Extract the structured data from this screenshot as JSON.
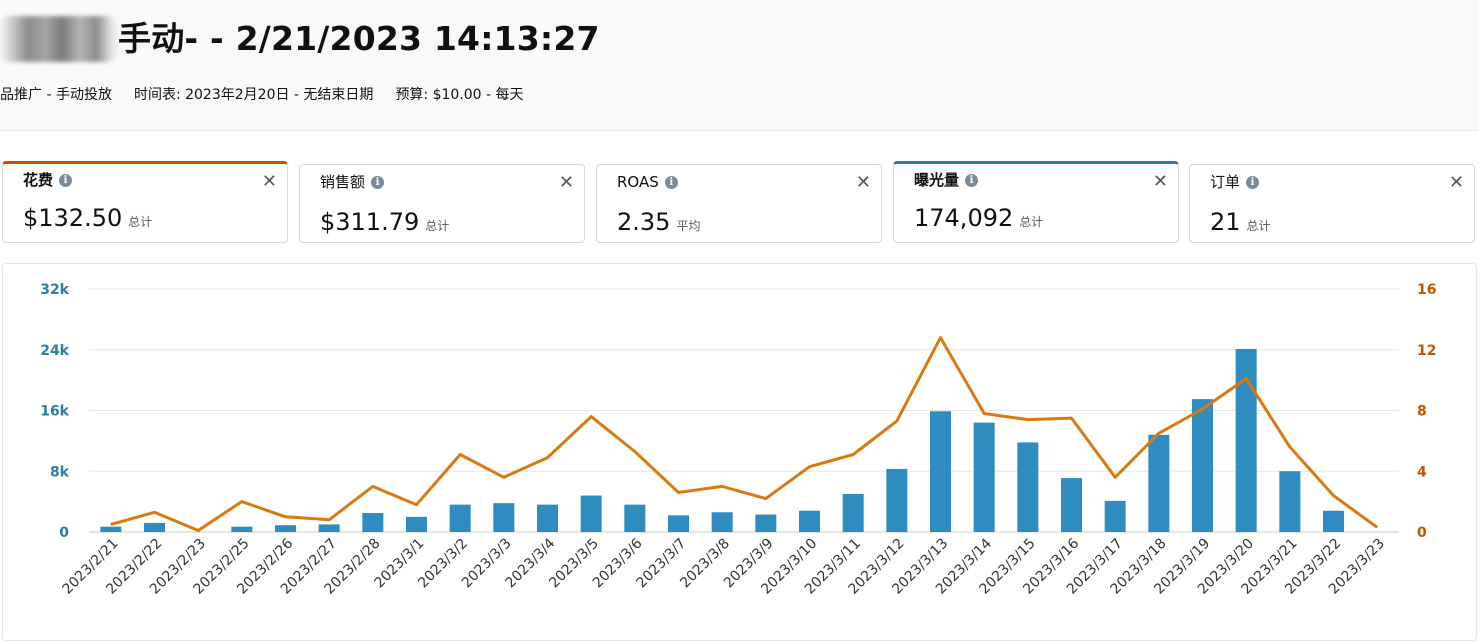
{
  "header": {
    "title": "手动- - 2/21/2023 14:13:27",
    "info": [
      "品推广 - 手动投放",
      "时间表: 2023年2月20日 - 无结束日期",
      "预算: $10.00 - 每天"
    ]
  },
  "metrics": [
    {
      "label": "花费",
      "value": "$132.50",
      "agg": "总计",
      "selected": "orange"
    },
    {
      "label": "销售额",
      "value": "$311.79",
      "agg": "总计",
      "selected": ""
    },
    {
      "label": "ROAS",
      "value": "2.35",
      "agg": "平均",
      "selected": ""
    },
    {
      "label": "曝光量",
      "value": "174,092",
      "agg": "总计",
      "selected": "blue"
    },
    {
      "label": "订单",
      "value": "21",
      "agg": "总计",
      "selected": ""
    }
  ],
  "icons": {
    "info": "info-icon",
    "close": "close-icon"
  },
  "colors": {
    "bar": "#2f8cbf",
    "line": "#d97a10",
    "left_axis": "#2b7ea1",
    "right_axis": "#c45500"
  },
  "chart_data": {
    "type": "bar",
    "categories": [
      "2023/2/21",
      "2023/2/22",
      "2023/2/23",
      "2023/2/25",
      "2023/2/26",
      "2023/2/27",
      "2023/2/28",
      "2023/3/1",
      "2023/3/2",
      "2023/3/3",
      "2023/3/4",
      "2023/3/5",
      "2023/3/6",
      "2023/3/7",
      "2023/3/8",
      "2023/3/9",
      "2023/3/10",
      "2023/3/11",
      "2023/3/12",
      "2023/3/13",
      "2023/3/14",
      "2023/3/15",
      "2023/3/16",
      "2023/3/17",
      "2023/3/18",
      "2023/3/19",
      "2023/3/20",
      "2023/3/21",
      "2023/3/22",
      "2023/3/23"
    ],
    "series": [
      {
        "type": "bar",
        "axis": "left",
        "values": [
          700,
          1200,
          0,
          700,
          900,
          1000,
          2500,
          2000,
          3600,
          3800,
          3600,
          4800,
          3600,
          2200,
          2600,
          2300,
          2800,
          5000,
          8300,
          15900,
          14400,
          11800,
          7100,
          4100,
          12800,
          17500,
          24100,
          8000,
          2800,
          0
        ]
      },
      {
        "type": "line",
        "axis": "right",
        "values": [
          0.5,
          1.3,
          0.1,
          2.0,
          1.0,
          0.8,
          3.0,
          1.8,
          5.1,
          3.6,
          4.9,
          7.6,
          5.3,
          2.6,
          3.0,
          2.2,
          4.3,
          5.1,
          7.3,
          12.8,
          7.8,
          7.4,
          7.5,
          3.6,
          6.5,
          8.1,
          10.1,
          5.6,
          2.4,
          0.3
        ]
      }
    ],
    "y_left": {
      "ticks": [
        "32k",
        "24k",
        "16k",
        "8k",
        "0"
      ],
      "ylim": [
        0,
        32000
      ]
    },
    "y_right": {
      "ticks": [
        "16",
        "12",
        "8",
        "4",
        "0"
      ],
      "ylim": [
        0,
        16
      ]
    },
    "grid": true
  }
}
